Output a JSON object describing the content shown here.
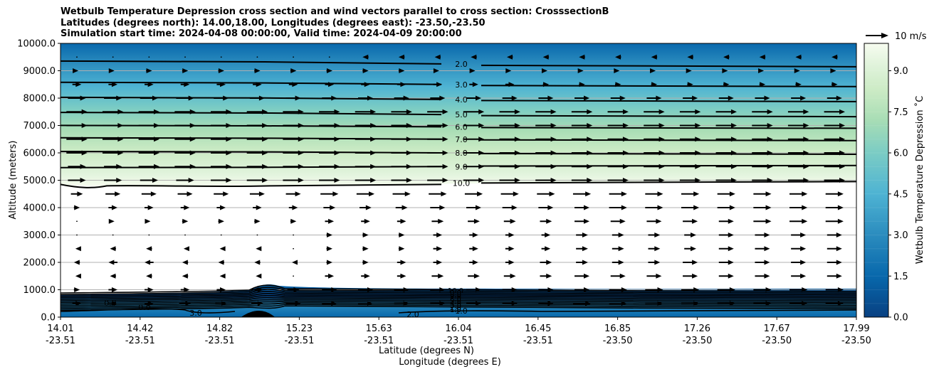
{
  "title_lines": [
    "Wetbulb Temperature Depression cross section and wind vectors parallel to cross section: CrosssectionB",
    "Latitudes (degrees north): 14.00,18.00, Longitudes (degrees east): -23.50,-23.50",
    "Simulation start time: 2024-04-08 00:00:00, Valid time: 2024-04-09 20:00:00"
  ],
  "chart_data": {
    "type": "heatmap",
    "ylabel": "Altitude (meters)",
    "xlabel_lat": "Latitude (degrees N)",
    "xlabel_lon": "Longitude (degrees E)",
    "ylim": [
      0,
      10000
    ],
    "y_ticks": [
      "0.0",
      "1000.0",
      "2000.0",
      "3000.0",
      "4000.0",
      "5000.0",
      "6000.0",
      "7000.0",
      "8000.0",
      "9000.0",
      "10000.0"
    ],
    "x_ticks": [
      {
        "lat": "14.01",
        "lon": "-23.51"
      },
      {
        "lat": "14.42",
        "lon": "-23.51"
      },
      {
        "lat": "14.82",
        "lon": "-23.51"
      },
      {
        "lat": "15.23",
        "lon": "-23.51"
      },
      {
        "lat": "15.63",
        "lon": "-23.51"
      },
      {
        "lat": "16.04",
        "lon": "-23.51"
      },
      {
        "lat": "16.45",
        "lon": "-23.51"
      },
      {
        "lat": "16.85",
        "lon": "-23.50"
      },
      {
        "lat": "17.26",
        "lon": "-23.50"
      },
      {
        "lat": "17.67",
        "lon": "-23.50"
      },
      {
        "lat": "17.99",
        "lon": "-23.50"
      }
    ],
    "grid": true,
    "colorbar": {
      "label": "Wetbulb Temperature Depression ˚C",
      "range": [
        0,
        10
      ],
      "ticks": [
        "0.0",
        "1.5",
        "3.0",
        "4.5",
        "6.0",
        "7.5",
        "9.0"
      ],
      "colormap": "GnBu_r",
      "colors": [
        "#084081",
        "#0868ac",
        "#2b8cbe",
        "#4eb3d3",
        "#7bccc4",
        "#a8ddb5",
        "#ccebc5",
        "#e0f3db",
        "#f7fcf0"
      ]
    },
    "contour_levels_upper": [
      {
        "label": "2.0",
        "altitude": 9250
      },
      {
        "label": "3.0",
        "altitude": 8500
      },
      {
        "label": "4.0",
        "altitude": 7950
      },
      {
        "label": "5.0",
        "altitude": 7400
      },
      {
        "label": "6.0",
        "altitude": 6950
      },
      {
        "label": "7.0",
        "altitude": 6500
      },
      {
        "label": "8.0",
        "altitude": 6000
      },
      {
        "label": "9.0",
        "altitude": 5500
      },
      {
        "label": "10.0",
        "altitude": 4900
      }
    ],
    "contour_labels_lower": [
      "10.0",
      "9.0",
      "8.0",
      "7.0",
      "6.0",
      "5.0",
      "4.0",
      "3.0",
      "2.0",
      "1.0"
    ],
    "wind_key": {
      "label": "10 m/s"
    },
    "wind_rows": [
      {
        "altitude": 9500,
        "speeds": [
          0,
          0,
          0,
          0,
          0,
          0,
          0,
          0,
          -2,
          -2,
          -2,
          -2,
          -2,
          -2,
          -2,
          -2,
          -2,
          -2,
          -2,
          -2,
          -2,
          -2
        ]
      },
      {
        "altitude": 9000,
        "speeds": [
          1,
          1,
          2,
          2,
          2,
          2,
          2,
          2,
          2,
          2,
          1,
          1,
          1,
          1,
          1,
          1,
          1,
          1,
          1,
          1,
          1,
          1
        ]
      },
      {
        "altitude": 8500,
        "speeds": [
          3,
          3,
          3,
          3,
          3,
          3,
          3,
          3,
          3,
          3,
          3,
          3,
          3,
          2,
          2,
          2,
          2,
          2,
          2,
          2,
          2,
          2
        ]
      },
      {
        "altitude": 8000,
        "speeds": [
          6,
          6,
          6,
          6,
          5,
          5,
          5,
          5,
          5,
          5,
          5,
          5,
          5,
          5,
          5,
          5,
          5,
          5,
          5,
          5,
          5,
          5
        ]
      },
      {
        "altitude": 7500,
        "speeds": [
          7,
          7,
          7,
          7,
          7,
          7,
          7,
          7,
          7,
          7,
          7,
          7,
          7,
          7,
          7,
          7,
          7,
          7,
          7,
          7,
          7,
          7
        ]
      },
      {
        "altitude": 7000,
        "speeds": [
          7,
          7,
          7,
          7,
          7,
          7,
          7,
          7,
          7,
          7,
          7,
          7,
          7,
          7,
          7,
          7,
          7,
          7,
          7,
          7,
          7,
          7
        ]
      },
      {
        "altitude": 6500,
        "speeds": [
          7,
          7,
          7,
          7,
          7,
          7,
          7,
          7,
          7,
          7,
          7,
          7,
          7,
          7,
          7,
          7,
          7,
          7,
          7,
          7,
          7,
          7
        ]
      },
      {
        "altitude": 6000,
        "speeds": [
          7,
          7,
          7,
          7,
          7,
          7,
          7,
          7,
          7,
          7,
          7,
          7,
          7,
          7,
          7,
          7,
          7,
          7,
          7,
          7,
          7,
          7
        ]
      },
      {
        "altitude": 5500,
        "speeds": [
          6,
          6,
          7,
          7,
          7,
          7,
          7,
          7,
          7,
          7,
          7,
          7,
          7,
          7,
          7,
          7,
          7,
          7,
          7,
          7,
          7,
          7
        ]
      },
      {
        "altitude": 5000,
        "speeds": [
          6,
          6,
          6,
          6,
          7,
          7,
          7,
          7,
          7,
          7,
          7,
          7,
          7,
          7,
          7,
          7,
          7,
          7,
          7,
          7,
          7,
          7
        ]
      },
      {
        "altitude": 4500,
        "speeds": [
          4,
          5,
          5,
          5,
          5,
          5,
          5,
          6,
          6,
          6,
          6,
          6,
          6,
          6,
          6,
          6,
          6,
          6,
          6,
          6,
          6,
          6
        ]
      },
      {
        "altitude": 4000,
        "speeds": [
          2,
          3,
          3,
          3,
          3,
          3,
          3,
          4,
          4,
          4,
          5,
          5,
          5,
          5,
          5,
          6,
          6,
          6,
          6,
          6,
          6,
          6
        ]
      },
      {
        "altitude": 3500,
        "speeds": [
          0,
          1,
          1,
          2,
          2,
          2,
          2,
          3,
          3,
          3,
          4,
          4,
          4,
          4,
          5,
          5,
          5,
          5,
          5,
          6,
          6,
          6
        ]
      },
      {
        "altitude": 3000,
        "speeds": [
          0,
          0,
          0,
          0,
          0,
          0,
          0,
          2,
          2,
          2,
          3,
          3,
          3,
          3,
          4,
          4,
          4,
          4,
          5,
          5,
          5,
          5
        ]
      },
      {
        "altitude": 2500,
        "speeds": [
          -1,
          -2,
          -2,
          -1,
          -1,
          -1,
          0,
          2,
          2,
          2,
          3,
          3,
          3,
          3,
          4,
          4,
          4,
          4,
          5,
          5,
          5,
          5
        ]
      },
      {
        "altitude": 2000,
        "speeds": [
          -2,
          -3,
          -3,
          -2,
          -2,
          -2,
          -1,
          2,
          2,
          3,
          3,
          3,
          3,
          4,
          4,
          4,
          4,
          5,
          5,
          5,
          5,
          5
        ]
      },
      {
        "altitude": 1500,
        "speeds": [
          -1,
          -2,
          -2,
          -2,
          -1,
          -1,
          0,
          3,
          3,
          3,
          4,
          4,
          4,
          4,
          5,
          5,
          5,
          5,
          5,
          5,
          5,
          5
        ]
      },
      {
        "altitude": 1000,
        "speeds": [
          2,
          3,
          3,
          3,
          3,
          4,
          4,
          5,
          5,
          5,
          5,
          5,
          5,
          5,
          5,
          6,
          6,
          6,
          6,
          6,
          6,
          6
        ]
      },
      {
        "altitude": 500,
        "speeds": [
          3,
          3,
          3,
          4,
          4,
          4,
          5,
          5,
          5,
          5,
          5,
          5,
          5,
          5,
          6,
          6,
          6,
          6,
          6,
          6,
          6,
          6
        ]
      }
    ]
  }
}
